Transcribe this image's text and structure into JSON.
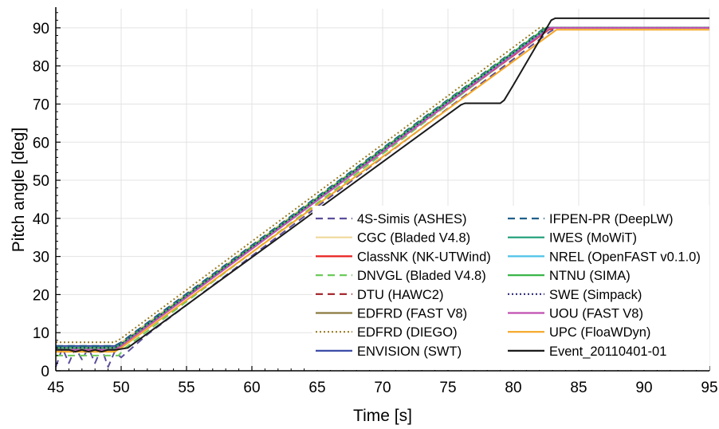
{
  "chart_data": {
    "type": "line",
    "xlabel": "Time [s]",
    "ylabel": "Pitch angle [deg]",
    "xlim": [
      45,
      95
    ],
    "ylim": [
      0,
      95
    ],
    "xticks": [
      45,
      50,
      55,
      60,
      65,
      70,
      75,
      80,
      85,
      90,
      95
    ],
    "yticks": [
      0,
      10,
      20,
      30,
      40,
      50,
      60,
      70,
      80,
      90
    ],
    "grid": true,
    "legend_position": "bottom-right",
    "legend_columns": 2,
    "series": [
      {
        "name": "4S-Simis (ASHES)",
        "color": "#5a4e9c",
        "dash": "dash",
        "x": [
          45,
          45.5,
          46,
          46.5,
          47,
          47.5,
          48,
          48.5,
          49,
          49.5,
          50,
          51,
          52,
          82.8,
          83.3,
          95
        ],
        "y": [
          1,
          6,
          2,
          6,
          3,
          6,
          2,
          6,
          1,
          5,
          3.5,
          6.5,
          9.5,
          89,
          90,
          90
        ]
      },
      {
        "name": "CGC (Bladed V4.8)",
        "color": "#efd89a",
        "dash": "solid",
        "x": [
          45,
          49.5,
          50,
          82.5,
          83,
          95
        ],
        "y": [
          6.5,
          6.5,
          7.5,
          90,
          90,
          90
        ]
      },
      {
        "name": "ClassNK (NK-UTWind)",
        "color": "#e8201e",
        "dash": "solid",
        "x": [
          45,
          49.5,
          50,
          82.7,
          83.2,
          95
        ],
        "y": [
          6,
          6,
          7,
          89.5,
          90,
          90
        ]
      },
      {
        "name": "DNVGL (Bladed V4.8)",
        "color": "#6ccb5a",
        "dash": "dash",
        "x": [
          45,
          49.8,
          50.3,
          82.8,
          95
        ],
        "y": [
          4,
          4,
          6,
          90,
          90
        ]
      },
      {
        "name": "DTU (HAWC2)",
        "color": "#a11d24",
        "dash": "dash",
        "x": [
          45,
          49.5,
          50,
          82.5,
          95
        ],
        "y": [
          6.5,
          6.5,
          7.5,
          90,
          90
        ]
      },
      {
        "name": "EDFRD (FAST V8)",
        "color": "#8a7a3e",
        "dash": "solid",
        "x": [
          45,
          49.5,
          50,
          82.6,
          95
        ],
        "y": [
          5.5,
          5.5,
          7,
          90,
          90
        ]
      },
      {
        "name": "EDFRD (DIEGO)",
        "color": "#9a7b22",
        "dash": "dot",
        "x": [
          45,
          49.5,
          50,
          82,
          95
        ],
        "y": [
          7.5,
          7.5,
          8.5,
          90,
          90
        ]
      },
      {
        "name": "ENVISION (SWT)",
        "color": "#3b4da8",
        "dash": "solid",
        "x": [
          45,
          49.5,
          50,
          82.6,
          95
        ],
        "y": [
          6.5,
          6.5,
          7,
          90,
          90
        ]
      },
      {
        "name": "IFPEN-PR (DeepLW)",
        "color": "#1f5f8b",
        "dash": "dash",
        "x": [
          45,
          49.5,
          50,
          82.4,
          95
        ],
        "y": [
          6.5,
          6.5,
          7.5,
          90,
          90
        ]
      },
      {
        "name": "IWES (MoWiT)",
        "color": "#1a9e77",
        "dash": "solid",
        "x": [
          45,
          49.5,
          50,
          82.5,
          95
        ],
        "y": [
          6,
          6,
          7,
          90,
          90
        ]
      },
      {
        "name": "NREL (OpenFAST v0.1.0)",
        "color": "#4cc3e8",
        "dash": "solid",
        "x": [
          45,
          49.5,
          50,
          82.6,
          95
        ],
        "y": [
          6,
          6,
          7,
          90,
          90
        ]
      },
      {
        "name": "NTNU (SIMA)",
        "color": "#3bb44a",
        "dash": "solid",
        "x": [
          45,
          49.5,
          50,
          82.5,
          95
        ],
        "y": [
          6,
          6,
          7,
          90,
          90
        ]
      },
      {
        "name": "SWE (Simpack)",
        "color": "#2c2a7a",
        "dash": "dot",
        "x": [
          45,
          49.5,
          50,
          82.6,
          95
        ],
        "y": [
          6,
          6,
          7,
          90,
          90
        ]
      },
      {
        "name": "UOU (FAST V8)",
        "color": "#c04fb0",
        "dash": "solid",
        "x": [
          45,
          49.5,
          50,
          82.8,
          95
        ],
        "y": [
          5.5,
          5.5,
          6.5,
          90,
          90
        ]
      },
      {
        "name": "UPC (FloaWDyn)",
        "color": "#f5a623",
        "dash": "solid",
        "x": [
          45,
          49.5,
          50,
          83.3,
          95
        ],
        "y": [
          5,
          5,
          6,
          89.5,
          89.5
        ]
      },
      {
        "name": "Event_20110401-01",
        "color": "#1a1a1a",
        "dash": "solid",
        "x": [
          45,
          46,
          46.5,
          47,
          47.5,
          48,
          48.5,
          49,
          49.6,
          50.5,
          76,
          76.3,
          79,
          79.3,
          80,
          82.9,
          83.2,
          95
        ],
        "y": [
          5.5,
          5.5,
          5,
          5.5,
          5,
          5.5,
          5,
          5.5,
          5.5,
          6,
          69.8,
          70.2,
          70.2,
          71,
          75,
          92,
          92.5,
          92.5
        ]
      }
    ]
  }
}
